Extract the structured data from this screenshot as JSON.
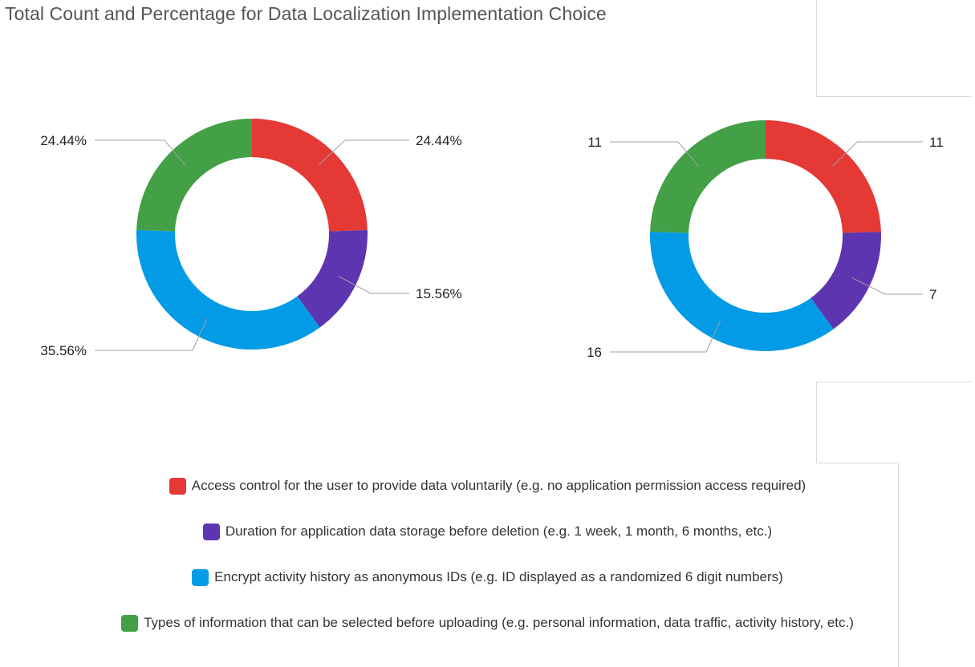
{
  "chart_data": [
    {
      "type": "pie",
      "title": "Total Count and Percentage for Data Localization Implementation Choice",
      "variant": "donut",
      "label_format": "percent",
      "categories": [
        "Access control for the user to provide data voluntarily (e.g. no application permission access required)",
        "Duration for application data storage before deletion (e.g. 1 week, 1 month, 6 months, etc.)",
        "Encrypt activity history as anonymous IDs (e.g. ID displayed as a randomized 6 digit numbers)",
        "Types of information that can be selected before uploading (e.g. personal information, data traffic, activity history, etc.)"
      ],
      "values": [
        24.44,
        15.56,
        35.56,
        24.44
      ],
      "labels": [
        "24.44%",
        "15.56%",
        "35.56%",
        "24.44%"
      ],
      "colors": [
        "#e53935",
        "#5e35b1",
        "#039be5",
        "#43a047"
      ],
      "legend": "bottom"
    },
    {
      "type": "pie",
      "variant": "donut",
      "label_format": "count",
      "categories": [
        "Access control for the user to provide data voluntarily (e.g. no application permission access required)",
        "Duration for application data storage before deletion (e.g. 1 week, 1 month, 6 months, etc.)",
        "Encrypt activity history as anonymous IDs (e.g. ID displayed as a randomized 6 digit numbers)",
        "Types of information that can be selected before uploading (e.g. personal information, data traffic, activity history, etc.)"
      ],
      "values": [
        11,
        7,
        16,
        11
      ],
      "labels": [
        "11",
        "7",
        "16",
        "11"
      ],
      "colors": [
        "#e53935",
        "#5e35b1",
        "#039be5",
        "#43a047"
      ],
      "legend": "bottom"
    }
  ],
  "legend": [
    {
      "label": "Access control for the user to provide data voluntarily (e.g. no application permission access required)",
      "color": "#e53935"
    },
    {
      "label": "Duration for application data storage before deletion (e.g. 1 week, 1 month, 6 months, etc.)",
      "color": "#5e35b1"
    },
    {
      "label": "Encrypt activity history as anonymous IDs (e.g. ID displayed as a randomized 6 digit numbers)",
      "color": "#039be5"
    },
    {
      "label": "Types of information that can be selected before uploading (e.g. personal information, data traffic, activity history, etc.)",
      "color": "#43a047"
    }
  ]
}
